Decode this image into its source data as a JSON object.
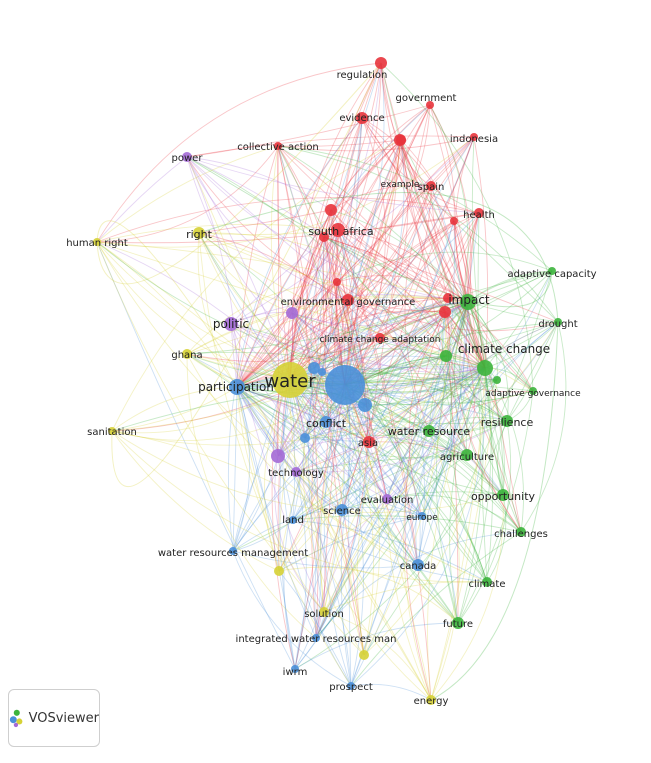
{
  "app": {
    "logo_text": "VOSviewer"
  },
  "colors": {
    "cluster1": "#e8343c",
    "cluster2": "#3cb43c",
    "cluster3": "#4a90d9",
    "cluster4": "#d6d236",
    "cluster5": "#a46ad6"
  },
  "terms": [
    {
      "label": "regulation",
      "cluster": 1
    },
    {
      "label": "government",
      "cluster": 1
    },
    {
      "label": "evidence",
      "cluster": 1
    },
    {
      "label": "indonesia",
      "cluster": 1
    },
    {
      "label": "collective action",
      "cluster": 1
    },
    {
      "label": "example",
      "cluster": 1
    },
    {
      "label": "spain",
      "cluster": 1
    },
    {
      "label": "health",
      "cluster": 1
    },
    {
      "label": "south africa",
      "cluster": 1
    },
    {
      "label": "environmental governance",
      "cluster": 1
    },
    {
      "label": "climate change adaptation",
      "cluster": 1
    },
    {
      "label": "asia",
      "cluster": 1
    },
    {
      "label": "impact",
      "cluster": 2
    },
    {
      "label": "adaptive capacity",
      "cluster": 2
    },
    {
      "label": "drought",
      "cluster": 2
    },
    {
      "label": "climate change",
      "cluster": 2
    },
    {
      "label": "adaptive governance",
      "cluster": 2
    },
    {
      "label": "resilience",
      "cluster": 2
    },
    {
      "label": "water resource",
      "cluster": 2
    },
    {
      "label": "agriculture",
      "cluster": 2
    },
    {
      "label": "opportunity",
      "cluster": 2
    },
    {
      "label": "challenges",
      "cluster": 2
    },
    {
      "label": "climate",
      "cluster": 2
    },
    {
      "label": "future",
      "cluster": 2
    },
    {
      "label": "participation",
      "cluster": 3
    },
    {
      "label": "conflict",
      "cluster": 3
    },
    {
      "label": "science",
      "cluster": 3
    },
    {
      "label": "water resources management",
      "cluster": 3
    },
    {
      "label": "canada",
      "cluster": 3
    },
    {
      "label": "integrated water resources man",
      "cluster": 3
    },
    {
      "label": "iwrm",
      "cluster": 3
    },
    {
      "label": "prospect",
      "cluster": 3
    },
    {
      "label": "europe",
      "cluster": 3
    },
    {
      "label": "land",
      "cluster": 3
    },
    {
      "label": "water",
      "cluster": 4
    },
    {
      "label": "human right",
      "cluster": 4
    },
    {
      "label": "right",
      "cluster": 4
    },
    {
      "label": "ghana",
      "cluster": 4
    },
    {
      "label": "sanitation",
      "cluster": 4
    },
    {
      "label": "solution",
      "cluster": 4
    },
    {
      "label": "energy",
      "cluster": 4
    },
    {
      "label": "power",
      "cluster": 5
    },
    {
      "label": "politic",
      "cluster": 5
    },
    {
      "label": "technology",
      "cluster": 5
    },
    {
      "label": "evaluation",
      "cluster": 5
    }
  ]
}
